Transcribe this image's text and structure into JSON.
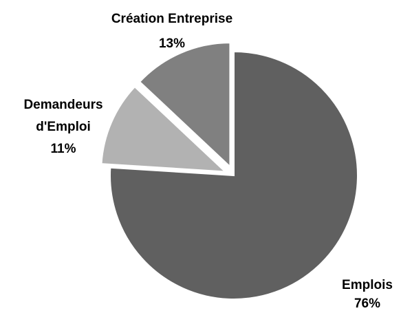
{
  "chart_data": {
    "type": "pie",
    "title": "",
    "slices": [
      {
        "label": "Emplois",
        "label_lines": [
          "Emplois"
        ],
        "pct_label": "76%",
        "value": 76,
        "color": "#606060",
        "exploded": false
      },
      {
        "label": "Demandeurs d'Emploi",
        "label_lines": [
          "Demandeurs",
          "d'Emploi"
        ],
        "pct_label": "11%",
        "value": 11,
        "color": "#b2b2b2",
        "exploded": true
      },
      {
        "label": "Création Entreprise",
        "label_lines": [
          "Création Entreprise"
        ],
        "pct_label": "13%",
        "value": 13,
        "color": "#808080",
        "exploded": true
      }
    ],
    "legend": "none",
    "data_labels": "outside"
  }
}
